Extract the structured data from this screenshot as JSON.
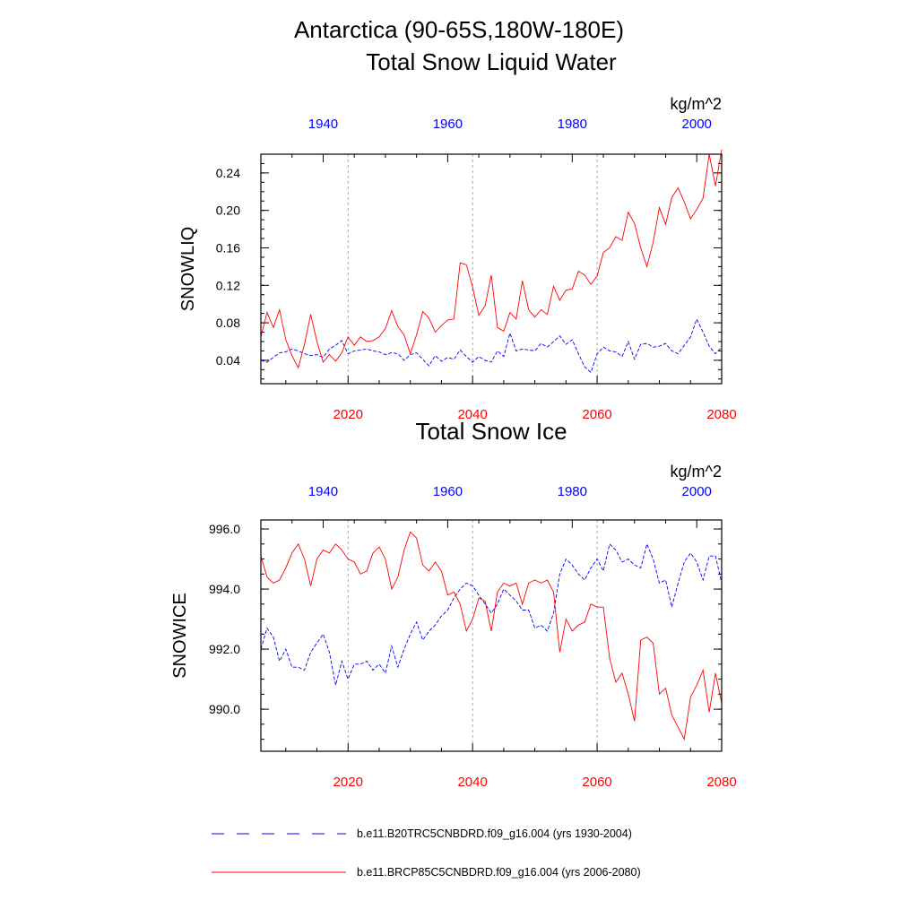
{
  "figure": {
    "title_line1": "Antarctica (90-65S,180W-180E)",
    "legend": [
      {
        "label": "b.e11.B20TRC5CNBDRD.f09_g16.004 (yrs 1930-2004)",
        "color": "#0000ff",
        "dash": "dashed"
      },
      {
        "label": "b.e11.BRCP85C5CNBDRD.f09_g16.004 (yrs 2006-2080)",
        "color": "#ff0000",
        "dash": "solid"
      }
    ]
  },
  "colors": {
    "historical": "#0000ff",
    "future": "#ff0000",
    "grid": "#999999",
    "axis": "#000000"
  },
  "chart_data": [
    {
      "type": "line",
      "title": "Total Snow Liquid Water",
      "ylabel": "SNOWLIQ",
      "units": "kg/m^2",
      "ylim": [
        0.015,
        0.26
      ],
      "y_ticks": [
        "0.04",
        "0.08",
        "0.12",
        "0.16",
        "0.20",
        "0.24"
      ],
      "x_bottom": {
        "range": [
          2006,
          2080
        ],
        "ticks": [
          "2020",
          "2040",
          "2060",
          "2080"
        ],
        "color": "#ff0000"
      },
      "x_top": {
        "range": [
          1930,
          2004
        ],
        "ticks": [
          "1940",
          "1960",
          "1980",
          "2000"
        ],
        "color": "#0000ff"
      },
      "gridlines_x": [
        2020,
        2040,
        2060
      ],
      "series": [
        {
          "name": "b.e11.B20TRC5CNBDRD.f09_g16.004 (yrs 1930-2004)",
          "axis": "top",
          "style": "dashed",
          "color": "#0000ff",
          "x_start": 1930,
          "values": [
            0.04,
            0.038,
            0.043,
            0.048,
            0.049,
            0.052,
            0.05,
            0.047,
            0.045,
            0.046,
            0.043,
            0.052,
            0.056,
            0.061,
            0.047,
            0.05,
            0.051,
            0.052,
            0.05,
            0.049,
            0.046,
            0.048,
            0.047,
            0.04,
            0.046,
            0.048,
            0.041,
            0.034,
            0.045,
            0.039,
            0.043,
            0.041,
            0.051,
            0.044,
            0.038,
            0.044,
            0.04,
            0.038,
            0.05,
            0.044,
            0.069,
            0.05,
            0.052,
            0.051,
            0.05,
            0.058,
            0.054,
            0.06,
            0.066,
            0.057,
            0.062,
            0.047,
            0.033,
            0.027,
            0.047,
            0.054,
            0.05,
            0.049,
            0.044,
            0.06,
            0.041,
            0.057,
            0.058,
            0.054,
            0.055,
            0.058,
            0.05,
            0.047,
            0.056,
            0.065,
            0.084,
            0.07,
            0.055,
            0.047,
            0.054
          ]
        },
        {
          "name": "b.e11.BRCP85C5CNBDRD.f09_g16.004 (yrs 2006-2080)",
          "axis": "bottom",
          "style": "solid",
          "color": "#ff0000",
          "x_start": 2006,
          "values": [
            0.065,
            0.091,
            0.075,
            0.094,
            0.062,
            0.045,
            0.032,
            0.057,
            0.089,
            0.06,
            0.038,
            0.046,
            0.039,
            0.048,
            0.065,
            0.056,
            0.065,
            0.06,
            0.061,
            0.065,
            0.074,
            0.093,
            0.076,
            0.067,
            0.047,
            0.067,
            0.092,
            0.085,
            0.07,
            0.077,
            0.083,
            0.084,
            0.144,
            0.142,
            0.118,
            0.088,
            0.098,
            0.131,
            0.075,
            0.071,
            0.091,
            0.084,
            0.125,
            0.094,
            0.086,
            0.094,
            0.089,
            0.119,
            0.104,
            0.115,
            0.116,
            0.135,
            0.131,
            0.121,
            0.13,
            0.155,
            0.16,
            0.172,
            0.168,
            0.198,
            0.186,
            0.16,
            0.14,
            0.166,
            0.203,
            0.185,
            0.214,
            0.224,
            0.209,
            0.191,
            0.201,
            0.213,
            0.26,
            0.226,
            0.265
          ]
        }
      ]
    },
    {
      "type": "line",
      "title": "Total Snow Ice",
      "ylabel": "SNOWICE",
      "units": "kg/m^2",
      "ylim": [
        988.6,
        996.3
      ],
      "y_ticks": [
        "990.0",
        "992.0",
        "994.0",
        "996.0"
      ],
      "x_bottom": {
        "range": [
          2006,
          2080
        ],
        "ticks": [
          "2020",
          "2040",
          "2060",
          "2080"
        ],
        "color": "#ff0000"
      },
      "x_top": {
        "range": [
          1930,
          2004
        ],
        "ticks": [
          "1940",
          "1960",
          "1980",
          "2000"
        ],
        "color": "#0000ff"
      },
      "gridlines_x": [
        2020,
        2040,
        2060
      ],
      "series": [
        {
          "name": "b.e11.B20TRC5CNBDRD.f09_g16.004 (yrs 1930-2004)",
          "axis": "top",
          "style": "dashed",
          "color": "#0000ff",
          "x_start": 1930,
          "values": [
            992.0,
            992.7,
            992.4,
            991.6,
            992.0,
            991.4,
            991.4,
            991.3,
            991.9,
            992.2,
            992.5,
            991.9,
            990.8,
            991.6,
            991.0,
            991.5,
            991.5,
            991.6,
            991.3,
            991.5,
            991.2,
            992.1,
            991.4,
            992.0,
            992.5,
            992.9,
            992.3,
            992.6,
            992.8,
            993.1,
            993.3,
            993.7,
            994.0,
            994.2,
            994.1,
            993.8,
            993.5,
            993.2,
            993.5,
            994.0,
            993.8,
            993.6,
            993.3,
            993.3,
            992.7,
            992.8,
            992.6,
            993.2,
            994.5,
            995.0,
            994.8,
            994.5,
            994.3,
            994.7,
            995.0,
            994.6,
            995.5,
            995.3,
            994.9,
            995.0,
            994.8,
            994.7,
            995.5,
            995.0,
            994.2,
            994.3,
            993.4,
            994.2,
            994.9,
            995.2,
            994.9,
            994.3,
            995.1,
            995.1,
            994.2
          ]
        },
        {
          "name": "b.e11.BRCP85C5CNBDRD.f09_g16.004 (yrs 2006-2080)",
          "axis": "bottom",
          "style": "solid",
          "color": "#ff0000",
          "x_start": 2006,
          "values": [
            995.1,
            994.4,
            994.2,
            994.3,
            994.7,
            995.2,
            995.5,
            995.0,
            994.1,
            995.0,
            995.3,
            995.2,
            995.5,
            995.3,
            995.0,
            994.9,
            994.5,
            994.6,
            995.2,
            995.4,
            995.0,
            994.0,
            994.4,
            995.3,
            995.9,
            995.7,
            994.8,
            994.6,
            994.9,
            994.6,
            993.8,
            993.9,
            993.5,
            992.6,
            993.0,
            993.7,
            993.6,
            992.6,
            993.9,
            994.2,
            994.1,
            994.2,
            993.5,
            994.2,
            994.3,
            994.2,
            994.3,
            993.9,
            991.9,
            993.0,
            992.6,
            992.8,
            992.9,
            993.5,
            993.4,
            993.4,
            991.7,
            990.9,
            991.2,
            990.5,
            989.6,
            992.3,
            992.4,
            992.2,
            990.5,
            990.7,
            989.8,
            989.4,
            989.0,
            990.4,
            990.8,
            991.3,
            989.9,
            991.2,
            990.2
          ]
        }
      ]
    }
  ]
}
